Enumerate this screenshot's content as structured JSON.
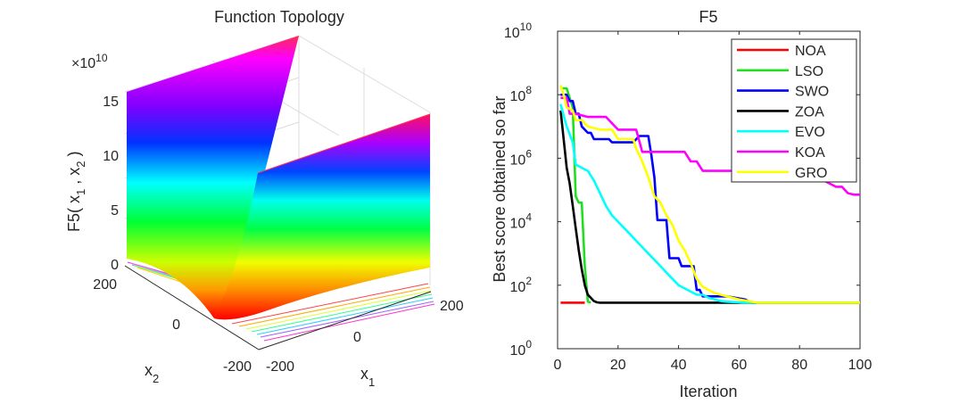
{
  "chart_data": [
    {
      "type": "surface",
      "title": "Function Topology",
      "xlabel": "x",
      "xlabel_sub": "1",
      "ylabel": "x",
      "ylabel_sub": "2",
      "zlabel_prefix": "F5( x",
      "zlabel_sub1": "1",
      "zlabel_mid": " , x",
      "zlabel_sub2": "2",
      "zlabel_suffix": " )",
      "z_exponent_base": "×10",
      "z_exponent_power": "10",
      "z_ticks": [
        "0",
        "5",
        "10",
        "15"
      ],
      "x_ticks": [
        "-200",
        "0",
        "200"
      ],
      "y_ticks": [
        "-200",
        "0",
        "200"
      ],
      "colormap": "hsv"
    },
    {
      "type": "line",
      "title": "F5",
      "xlabel": "Iteration",
      "ylabel": "Best score obtained so far",
      "xlim": [
        0,
        100
      ],
      "ylim_log10": [
        0,
        10
      ],
      "x_ticks": [
        "0",
        "20",
        "40",
        "60",
        "80",
        "100"
      ],
      "y_tick_base": "10",
      "y_tick_powers": [
        "0",
        "2",
        "4",
        "6",
        "8",
        "10"
      ],
      "legend_position": "top-right",
      "series": [
        {
          "name": "NOA",
          "color": "#ff0000",
          "x": [
            1,
            9
          ],
          "log10_y": [
            1.45,
            1.45
          ]
        },
        {
          "name": "LSO",
          "color": "#22dd22",
          "x": [
            1,
            3,
            4,
            5,
            6,
            7,
            8,
            9,
            10,
            11
          ],
          "log10_y": [
            8.2,
            8.2,
            7.9,
            7.6,
            4.8,
            4.6,
            4.6,
            2.6,
            1.48,
            1.45
          ]
        },
        {
          "name": "SWO",
          "color": "#0000ff",
          "x": [
            1,
            3,
            4,
            5,
            6,
            7,
            8,
            9,
            10,
            11,
            12,
            15,
            17,
            18,
            19,
            20,
            25,
            27,
            30,
            31,
            32,
            33,
            36,
            37,
            40,
            41,
            42,
            44,
            45,
            46,
            47,
            48,
            56,
            59,
            62,
            64,
            100
          ],
          "log10_y": [
            8.0,
            8.0,
            7.8,
            7.8,
            7.4,
            7.4,
            7.0,
            6.9,
            6.8,
            6.8,
            6.6,
            6.6,
            6.6,
            6.5,
            6.5,
            6.5,
            6.5,
            6.7,
            6.7,
            6.1,
            5.4,
            4.05,
            4.05,
            2.85,
            2.85,
            2.6,
            2.6,
            2.6,
            2.6,
            1.85,
            1.85,
            1.65,
            1.65,
            1.6,
            1.55,
            1.45,
            1.45
          ]
        },
        {
          "name": "ZOA",
          "color": "#000000",
          "x": [
            1,
            2,
            3,
            4,
            5,
            6,
            7,
            8,
            9,
            10,
            11,
            12,
            13,
            14,
            100
          ],
          "log10_y": [
            7.5,
            6.6,
            5.7,
            5.2,
            4.5,
            3.8,
            3.1,
            2.5,
            2.0,
            1.7,
            1.6,
            1.5,
            1.46,
            1.45,
            1.45
          ]
        },
        {
          "name": "EVO",
          "color": "#00ffff",
          "x": [
            1,
            3,
            5,
            6,
            8,
            10,
            12,
            14,
            16,
            18,
            20,
            22,
            24,
            26,
            28,
            30,
            32,
            34,
            36,
            38,
            40,
            42,
            44,
            46,
            48,
            50,
            52,
            54,
            56,
            58,
            60,
            62,
            64,
            100
          ],
          "log10_y": [
            7.7,
            7.0,
            6.5,
            5.8,
            5.7,
            5.6,
            5.3,
            4.9,
            4.5,
            4.2,
            4.0,
            3.8,
            3.6,
            3.4,
            3.2,
            3.0,
            2.8,
            2.6,
            2.4,
            2.2,
            2.0,
            1.9,
            1.8,
            1.7,
            1.7,
            1.6,
            1.55,
            1.5,
            1.48,
            1.47,
            1.46,
            1.45,
            1.45,
            1.45
          ]
        },
        {
          "name": "KOA",
          "color": "#ff00ff",
          "x": [
            1,
            3,
            4,
            6,
            10,
            14,
            16,
            20,
            26,
            28,
            34,
            38,
            42,
            44,
            46,
            48,
            50,
            56,
            58,
            64,
            68,
            70,
            78,
            84,
            88,
            90,
            92,
            94,
            96,
            98,
            100
          ],
          "log10_y": [
            7.9,
            7.9,
            7.4,
            7.4,
            7.3,
            7.3,
            7.3,
            6.9,
            6.9,
            6.2,
            6.2,
            6.2,
            6.2,
            5.9,
            5.9,
            5.6,
            5.6,
            5.6,
            5.6,
            5.6,
            5.5,
            5.5,
            5.5,
            5.3,
            5.3,
            5.2,
            5.1,
            5.1,
            4.9,
            4.85,
            4.85
          ]
        },
        {
          "name": "GRO",
          "color": "#ffff00",
          "x": [
            1,
            2,
            3,
            5,
            6,
            8,
            10,
            14,
            18,
            20,
            25,
            26,
            28,
            30,
            32,
            34,
            36,
            38,
            40,
            42,
            44,
            46,
            48,
            50,
            52,
            56,
            60,
            66,
            100
          ],
          "log10_y": [
            8.3,
            8.0,
            7.6,
            7.5,
            7.2,
            7.2,
            7.0,
            6.9,
            6.9,
            6.6,
            6.6,
            6.3,
            5.9,
            5.4,
            4.8,
            4.6,
            4.2,
            3.9,
            3.4,
            3.1,
            2.7,
            2.2,
            1.95,
            1.85,
            1.75,
            1.65,
            1.55,
            1.45,
            1.45
          ]
        }
      ]
    }
  ]
}
